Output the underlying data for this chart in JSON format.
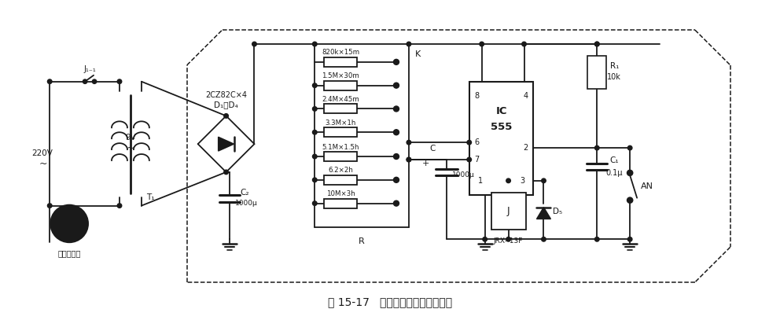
{
  "title": "图 15-17   家电定时断电控制器电路",
  "title_fontsize": 10,
  "bg_color": "#ffffff",
  "line_color": "#1a1a1a",
  "line_width": 1.3,
  "fig_width": 9.92,
  "fig_height": 4.07,
  "dpi": 100,
  "res_labels": [
    "820k×15m",
    "1.5M×30m",
    "2.4M×45m",
    "3.3M×1h",
    "5.1M×1.5h",
    "6.2×2h",
    "10M×3h"
  ]
}
